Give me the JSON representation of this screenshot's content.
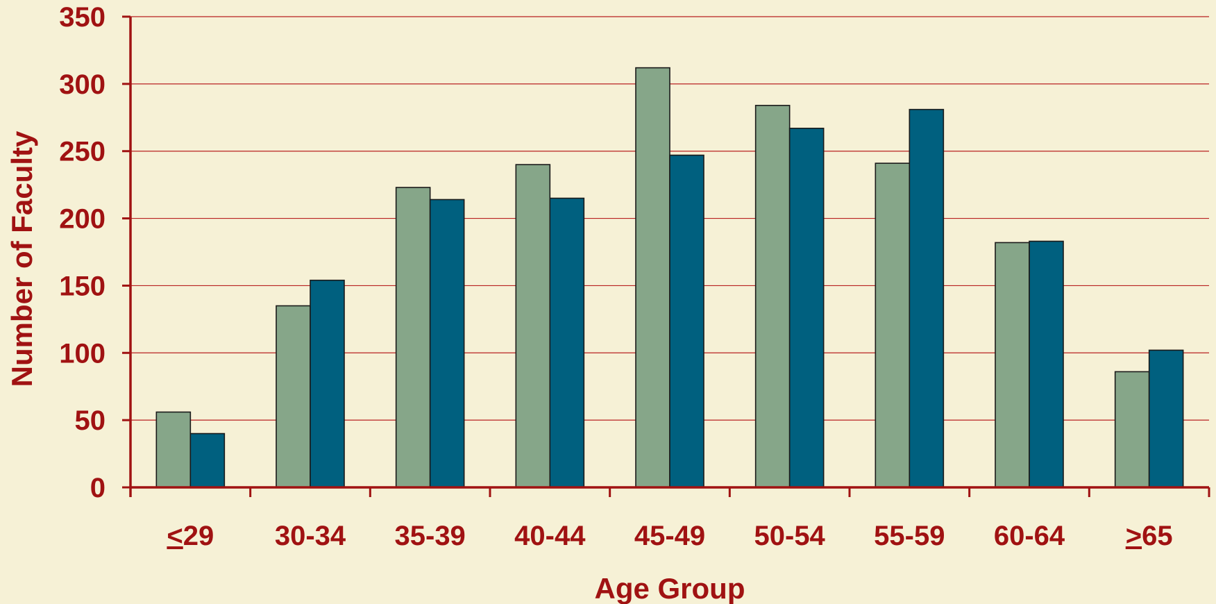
{
  "chart_data": {
    "type": "bar",
    "categories": [
      "<29",
      "30-34",
      "35-39",
      "40-44",
      "45-49",
      "50-54",
      "55-59",
      "60-64",
      ">65"
    ],
    "category_display": [
      {
        "prefix": "",
        "underlined": "<",
        "rest": "29"
      },
      {
        "prefix": "",
        "underlined": "",
        "rest": "30-34"
      },
      {
        "prefix": "",
        "underlined": "",
        "rest": "35-39"
      },
      {
        "prefix": "",
        "underlined": "",
        "rest": "40-44"
      },
      {
        "prefix": "",
        "underlined": "",
        "rest": "45-49"
      },
      {
        "prefix": "",
        "underlined": "",
        "rest": "50-54"
      },
      {
        "prefix": "",
        "underlined": "",
        "rest": "55-59"
      },
      {
        "prefix": "",
        "underlined": "",
        "rest": "60-64"
      },
      {
        "prefix": "",
        "underlined": ">",
        "rest": "65"
      }
    ],
    "series": [
      {
        "values": [
          56,
          135,
          223,
          240,
          312,
          284,
          241,
          182,
          86
        ],
        "color": "#86a689"
      },
      {
        "values": [
          40,
          154,
          214,
          215,
          247,
          267,
          281,
          183,
          102
        ],
        "color": "#00607f"
      }
    ],
    "xlabel": "Age Group",
    "ylabel": "Number of Faculty",
    "ylim": [
      0,
      350
    ],
    "yticks": [
      0,
      50,
      100,
      150,
      200,
      250,
      300,
      350
    ],
    "grid": true,
    "legend": "none",
    "colors": {
      "background": "#f6f1d6",
      "text": "#a01212",
      "axis": "#a01212",
      "grid": "#b82020",
      "bar_border": "#1a1a1a"
    }
  }
}
